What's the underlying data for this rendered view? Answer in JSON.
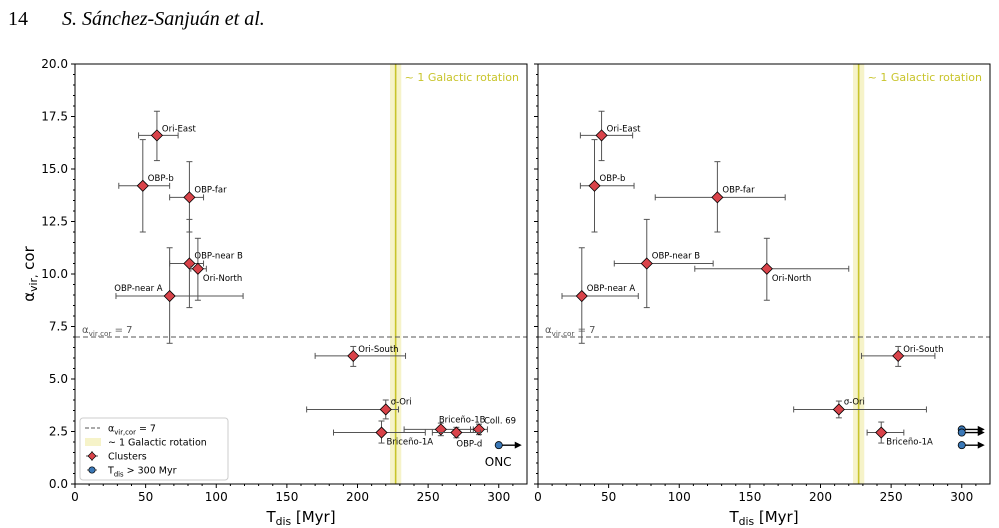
{
  "page": {
    "page_number": "14",
    "authors": "S. Sánchez-Sanjuán et al."
  },
  "colors": {
    "cluster_fill": "#d9434a",
    "onc_fill": "#3a78b7",
    "rotation_band": "#f6f3c9",
    "rotation_line": "#c8c42a",
    "threshold_line": "#555555",
    "errorbar": "#555555"
  },
  "chart_data": [
    {
      "type": "scatter",
      "xlabel": "T_dis [Myr]",
      "ylabel": "α_vir, cor",
      "xlim": [
        0,
        320
      ],
      "ylim": [
        0,
        20
      ],
      "xticks": [
        "0",
        "50",
        "100",
        "150",
        "200",
        "250",
        "300"
      ],
      "yticks": [
        "0.0",
        "2.5",
        "5.0",
        "7.5",
        "10.0",
        "12.5",
        "15.0",
        "17.5",
        "20.0"
      ],
      "threshold": {
        "y": 7,
        "label": "α_vir,cor = 7"
      },
      "rotation": {
        "x": 227,
        "band": [
          223,
          231
        ],
        "label": "~ 1 Galactic rotation"
      },
      "points": [
        {
          "name": "Ori-East",
          "x": 58,
          "y": 16.6,
          "xerr": [
            45,
            73
          ],
          "yerr": [
            15.4,
            17.75
          ]
        },
        {
          "name": "OBP-b",
          "x": 48,
          "y": 14.2,
          "xerr": [
            31,
            67
          ],
          "yerr": [
            12.0,
            16.4
          ]
        },
        {
          "name": "OBP-far",
          "x": 81,
          "y": 13.65,
          "xerr": [
            67,
            91
          ],
          "yerr": [
            12.0,
            15.35
          ]
        },
        {
          "name": "OBP-near B",
          "x": 81,
          "y": 10.5,
          "xerr": [
            67,
            91
          ],
          "yerr": [
            8.4,
            12.6
          ]
        },
        {
          "name": "Ori-North",
          "x": 87,
          "y": 10.25,
          "xerr": [
            82,
            93
          ],
          "yerr": [
            8.75,
            11.7
          ]
        },
        {
          "name": "OBP-near A",
          "x": 67,
          "y": 8.95,
          "xerr": [
            29,
            119
          ],
          "yerr": [
            6.7,
            11.25
          ]
        },
        {
          "name": "Ori-South",
          "x": 197,
          "y": 6.1,
          "xerr": [
            170,
            234
          ],
          "yerr": [
            5.6,
            6.55
          ]
        },
        {
          "name": "σ-Ori",
          "x": 220,
          "y": 3.55,
          "xerr": [
            164,
            229
          ],
          "yerr": [
            3.1,
            4.0
          ]
        },
        {
          "name": "Briceño-1B",
          "x": 259,
          "y": 2.6,
          "xerr": [
            233,
            282
          ],
          "yerr": [
            2.3,
            2.9
          ]
        },
        {
          "name": "Coll. 69",
          "x": 286,
          "y": 2.6,
          "xerr": [
            280,
            292
          ],
          "yerr": [
            2.35,
            2.85
          ]
        },
        {
          "name": "OBP-d",
          "x": 270,
          "y": 2.45,
          "xerr": [
            253,
            287
          ],
          "yerr": [
            2.2,
            2.7
          ]
        },
        {
          "name": "Briceño-1A",
          "x": 217,
          "y": 2.45,
          "xerr": [
            183,
            248
          ],
          "yerr": [
            1.95,
            3.0
          ]
        }
      ],
      "lower_limits": [
        {
          "name": "ONC",
          "x": 300,
          "y": 1.85
        }
      ],
      "legend": {
        "position": "lower-left",
        "entries": [
          "α_vir,cor = 7",
          "~ 1 Galactic rotation",
          "Clusters",
          "T_dis > 300 Myr"
        ]
      }
    },
    {
      "type": "scatter",
      "xlabel": "T_dis [Myr]",
      "ylabel": "",
      "xlim": [
        0,
        320
      ],
      "ylim": [
        0,
        20
      ],
      "xticks": [
        "0",
        "50",
        "100",
        "150",
        "200",
        "250",
        "300"
      ],
      "yticks": [],
      "threshold": {
        "y": 7,
        "label": "α_vir,cor = 7"
      },
      "rotation": {
        "x": 227,
        "band": [
          223,
          231
        ],
        "label": "~ 1 Galactic rotation"
      },
      "points": [
        {
          "name": "Ori-East",
          "x": 45,
          "y": 16.6,
          "xerr": [
            30,
            67
          ],
          "yerr": [
            15.4,
            17.75
          ]
        },
        {
          "name": "OBP-b",
          "x": 40,
          "y": 14.2,
          "xerr": [
            30,
            68
          ],
          "yerr": [
            12.0,
            16.4
          ]
        },
        {
          "name": "OBP-far",
          "x": 127,
          "y": 13.65,
          "xerr": [
            83,
            175
          ],
          "yerr": [
            12.0,
            15.35
          ]
        },
        {
          "name": "OBP-near B",
          "x": 77,
          "y": 10.5,
          "xerr": [
            54,
            124
          ],
          "yerr": [
            8.4,
            12.6
          ]
        },
        {
          "name": "Ori-North",
          "x": 162,
          "y": 10.25,
          "xerr": [
            111,
            220
          ],
          "yerr": [
            8.75,
            11.7
          ]
        },
        {
          "name": "OBP-near A",
          "x": 31,
          "y": 8.95,
          "xerr": [
            17,
            71
          ],
          "yerr": [
            6.7,
            11.25
          ]
        },
        {
          "name": "Ori-South",
          "x": 255,
          "y": 6.1,
          "xerr": [
            229,
            281
          ],
          "yerr": [
            5.6,
            6.55
          ]
        },
        {
          "name": "σ-Ori",
          "x": 213,
          "y": 3.55,
          "xerr": [
            181,
            275
          ],
          "yerr": [
            3.15,
            3.95
          ]
        },
        {
          "name": "Briceño-1A",
          "x": 243,
          "y": 2.45,
          "xerr": [
            233,
            259
          ],
          "yerr": [
            1.95,
            2.95
          ]
        }
      ],
      "lower_limits": [
        {
          "name": "",
          "x": 300,
          "y": 2.6
        },
        {
          "name": "",
          "x": 300,
          "y": 2.45
        },
        {
          "name": "",
          "x": 300,
          "y": 1.85
        }
      ]
    }
  ]
}
